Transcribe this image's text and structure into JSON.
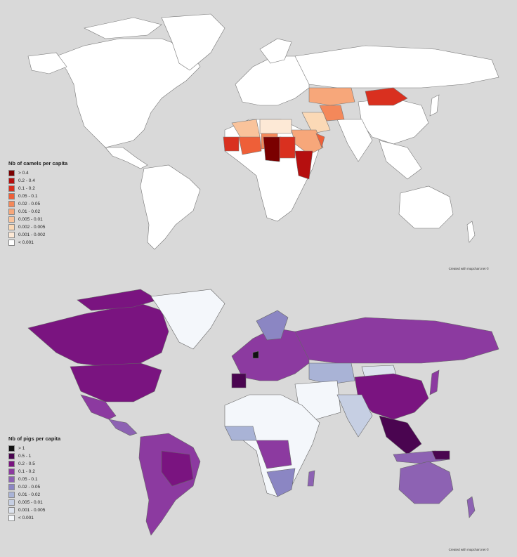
{
  "maps": [
    {
      "id": "camels",
      "legend_title": "Nb of camels per capita",
      "legend": [
        {
          "label": "> 0.4",
          "color": "#7a0000"
        },
        {
          "label": "0.2 - 0.4",
          "color": "#b50f0f"
        },
        {
          "label": "0.1 - 0.2",
          "color": "#d9301f"
        },
        {
          "label": "0.05 - 0.1",
          "color": "#ee5f38"
        },
        {
          "label": "0.02 - 0.05",
          "color": "#f4885a"
        },
        {
          "label": "0.01 - 0.02",
          "color": "#f7a77a"
        },
        {
          "label": "0.005 - 0.01",
          "color": "#f9c39b"
        },
        {
          "label": "0.002 - 0.005",
          "color": "#fbd9b6"
        },
        {
          "label": "0.001 - 0.002",
          "color": "#fde9d6"
        },
        {
          "label": "< 0.001",
          "color": "#ffffff"
        }
      ],
      "credit": "Created with mapchart.net ©"
    },
    {
      "id": "pigs",
      "legend_title": "Nb of pigs per capita",
      "legend": [
        {
          "label": "> 1",
          "color": "#111111"
        },
        {
          "label": "0.5 - 1",
          "color": "#4a0550"
        },
        {
          "label": "0.2 - 0.5",
          "color": "#7a1480"
        },
        {
          "label": "0.1 - 0.2",
          "color": "#8c3aa0"
        },
        {
          "label": "0.05 - 0.1",
          "color": "#8d62b3"
        },
        {
          "label": "0.02 - 0.05",
          "color": "#8b86c3"
        },
        {
          "label": "0.01 - 0.02",
          "color": "#a9b3d6"
        },
        {
          "label": "0.005 - 0.01",
          "color": "#c6cfe3"
        },
        {
          "label": "0.001 - 0.005",
          "color": "#dde3ee"
        },
        {
          "label": "< 0.001",
          "color": "#f4f7fb"
        }
      ],
      "credit": "Created with mapchart.net ©"
    }
  ]
}
